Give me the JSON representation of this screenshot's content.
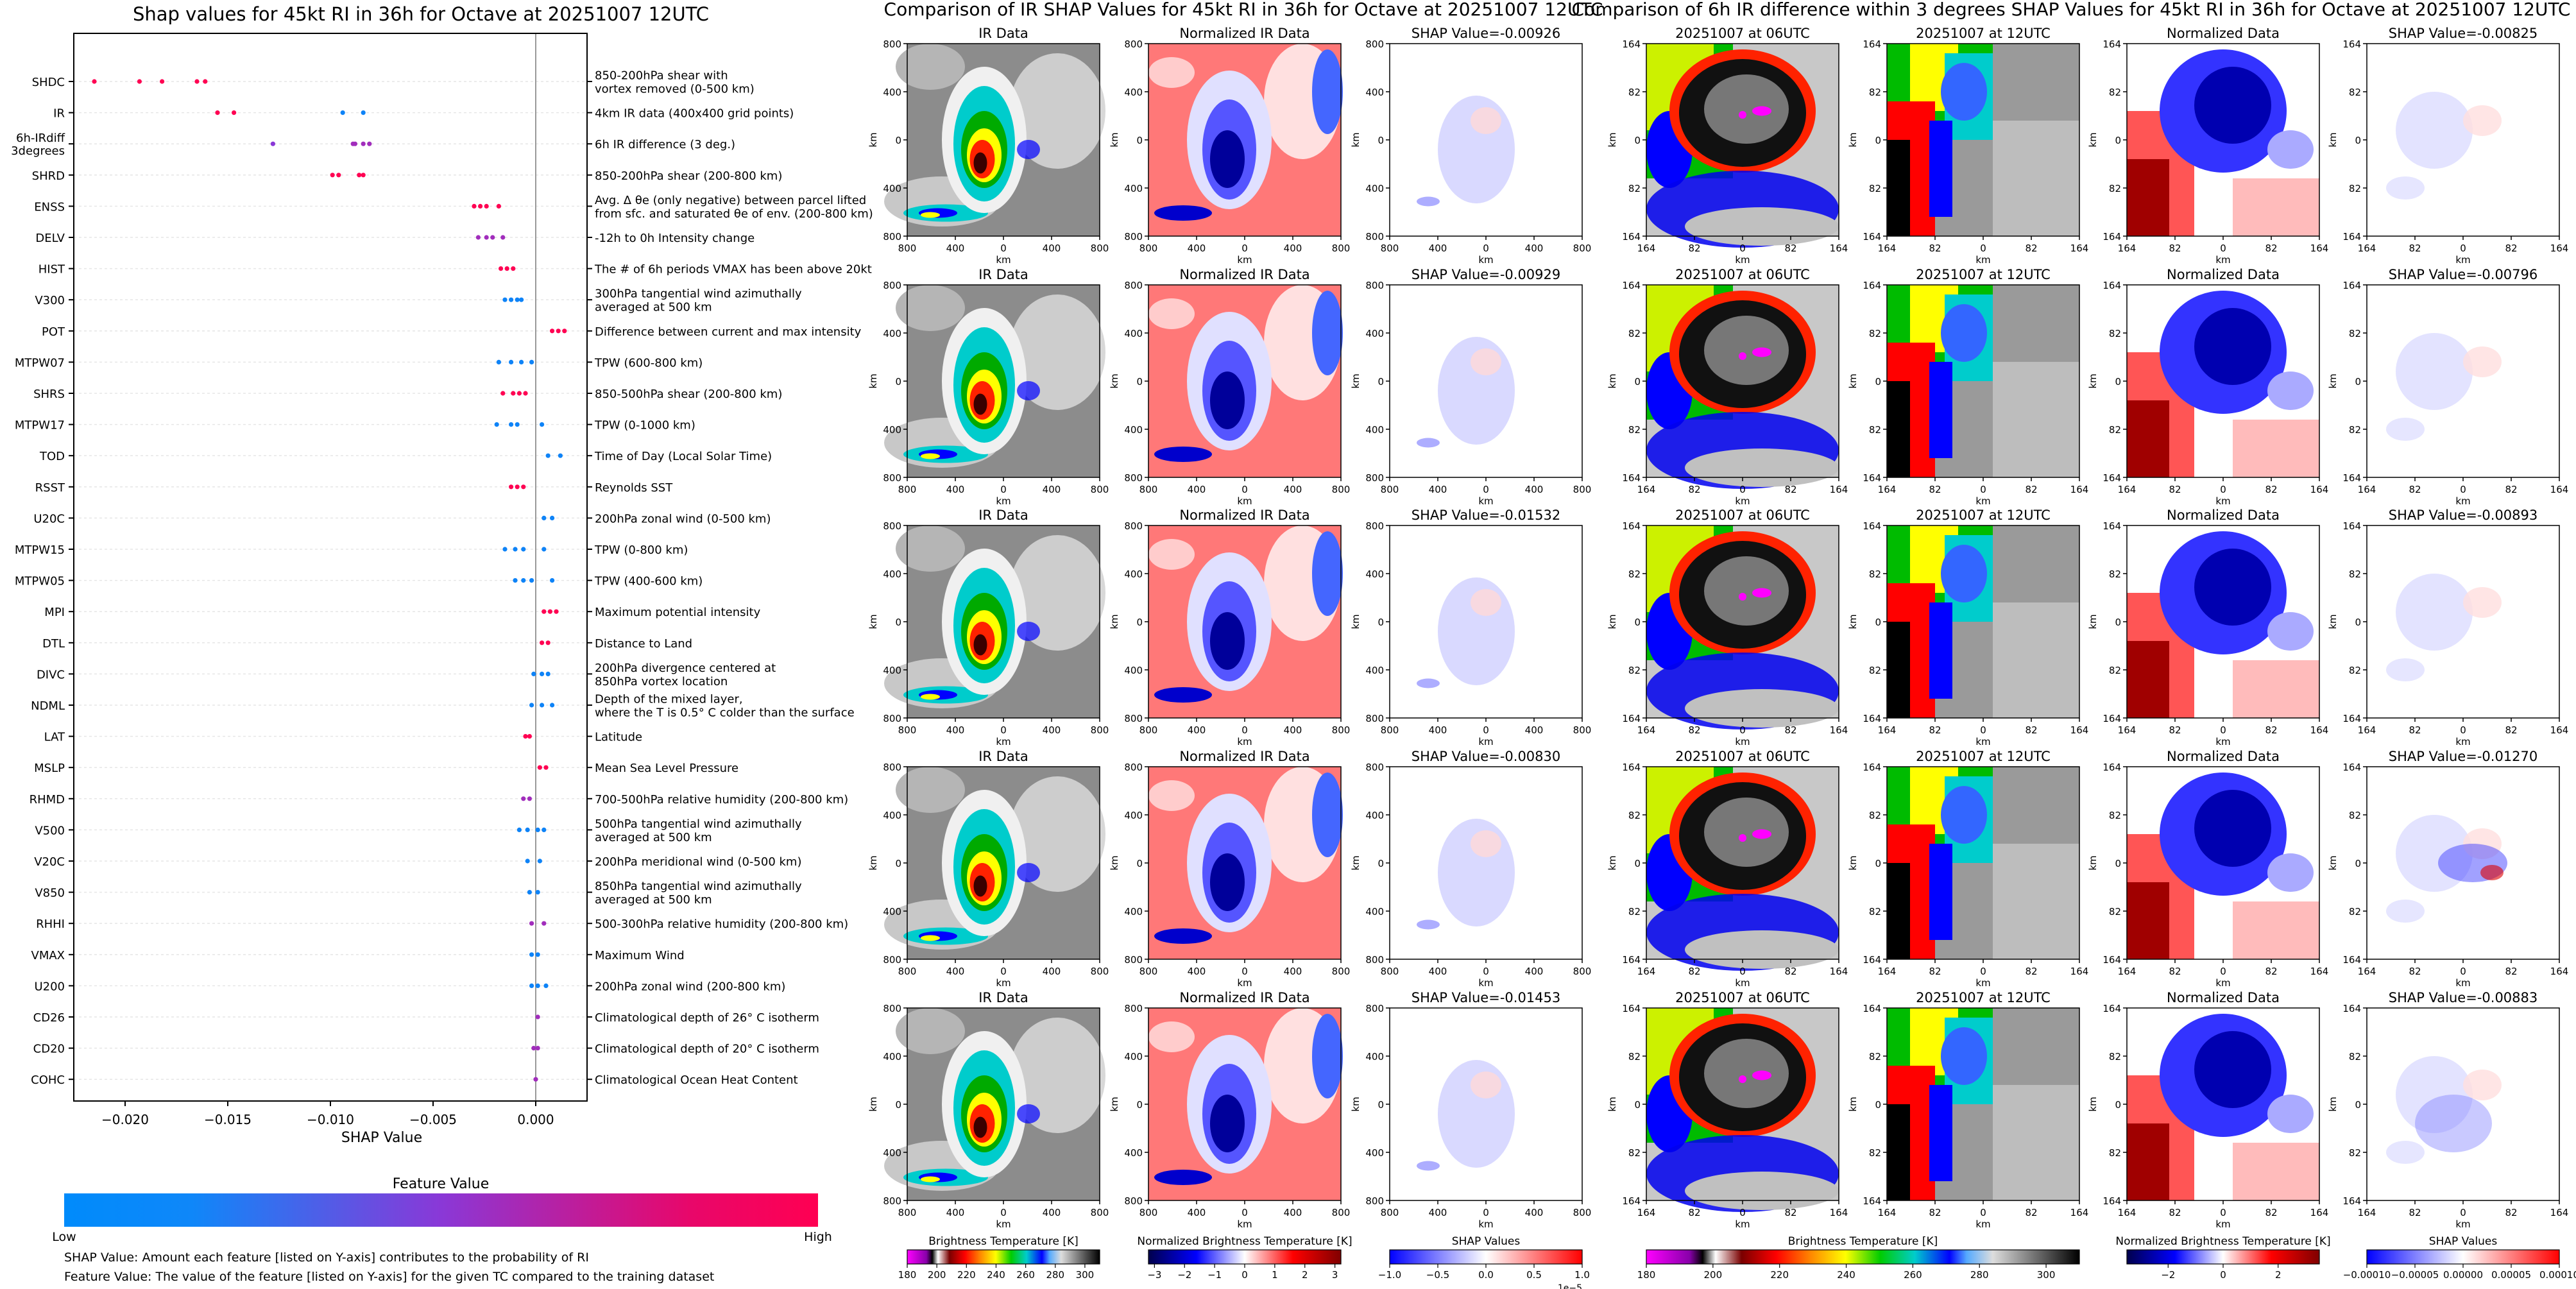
{
  "colors": {
    "low": "#008bfb",
    "mid": "#8a38d7",
    "high": "#ff0052",
    "shap_neg": "#2222ff",
    "shap_pos": "#ff2222"
  },
  "chart_data": [
    {
      "type": "scatter",
      "title": "Shap values for 45kt RI in 36h for Octave at 20251007 12UTC",
      "xlabel": "SHAP Value",
      "ylabel": "",
      "xlim": [
        -0.0225,
        0.0025
      ],
      "x_ticks": [
        "−0.020",
        "−0.015",
        "−0.010",
        "−0.005",
        "0.000"
      ],
      "x_tick_values": [
        -0.02,
        -0.015,
        -0.01,
        -0.005,
        0.0
      ],
      "features": [
        {
          "name": "SHDC",
          "desc": "850-200hPa shear with\nvortex removed (0-500 km)",
          "points": [
            [
              -0.0215,
              1.0
            ],
            [
              -0.0193,
              1.0
            ],
            [
              -0.0182,
              1.0
            ],
            [
              -0.0165,
              1.0
            ],
            [
              -0.0161,
              1.0
            ]
          ]
        },
        {
          "name": "IR",
          "desc": "4km IR data (400x400 grid points)",
          "points": [
            [
              -0.0155,
              1.0
            ],
            [
              -0.0147,
              1.0
            ],
            [
              -0.0094,
              0.05
            ],
            [
              -0.0084,
              0.05
            ]
          ]
        },
        {
          "name": "6h-IRdiff\n3degrees",
          "desc": "6h IR difference (3 deg.)",
          "points": [
            [
              -0.0128,
              0.5
            ],
            [
              -0.0089,
              0.6
            ],
            [
              -0.0088,
              0.6
            ],
            [
              -0.0084,
              0.6
            ],
            [
              -0.0081,
              0.6
            ]
          ]
        },
        {
          "name": "SHRD",
          "desc": "850-200hPa shear (200-800 km)",
          "points": [
            [
              -0.0099,
              1.0
            ],
            [
              -0.0096,
              1.0
            ],
            [
              -0.0086,
              1.0
            ],
            [
              -0.0084,
              1.0
            ]
          ]
        },
        {
          "name": "ENSS",
          "desc": "Avg. Δ θe (only negative) between parcel lifted\nfrom sfc. and saturated θe of env. (200-800 km)",
          "points": [
            [
              -0.003,
              1.0
            ],
            [
              -0.0027,
              1.0
            ],
            [
              -0.0024,
              1.0
            ],
            [
              -0.0018,
              1.0
            ]
          ]
        },
        {
          "name": "DELV",
          "desc": "-12h to 0h Intensity change",
          "points": [
            [
              -0.0028,
              0.6
            ],
            [
              -0.0024,
              0.6
            ],
            [
              -0.0021,
              0.6
            ],
            [
              -0.0016,
              0.6
            ]
          ]
        },
        {
          "name": "HIST",
          "desc": "The # of 6h periods VMAX has been above 20kt",
          "points": [
            [
              -0.0017,
              1.0
            ],
            [
              -0.0014,
              1.0
            ],
            [
              -0.0011,
              1.0
            ]
          ]
        },
        {
          "name": "V300",
          "desc": "300hPa tangential wind azimuthally\naveraged at 500 km",
          "points": [
            [
              -0.0015,
              0.05
            ],
            [
              -0.0012,
              0.05
            ],
            [
              -0.0009,
              0.05
            ],
            [
              -0.0007,
              0.05
            ]
          ]
        },
        {
          "name": "POT",
          "desc": "Difference between current and max intensity",
          "points": [
            [
              0.0008,
              1.0
            ],
            [
              0.0011,
              1.0
            ],
            [
              0.0014,
              1.0
            ]
          ]
        },
        {
          "name": "MTPW07",
          "desc": "TPW (600-800 km)",
          "points": [
            [
              -0.0018,
              0.05
            ],
            [
              -0.0012,
              0.05
            ],
            [
              -0.0007,
              0.05
            ],
            [
              -0.0002,
              0.05
            ]
          ]
        },
        {
          "name": "SHRS",
          "desc": "850-500hPa shear (200-800 km)",
          "points": [
            [
              -0.0016,
              1.0
            ],
            [
              -0.0011,
              1.0
            ],
            [
              -0.0008,
              1.0
            ],
            [
              -0.0005,
              1.0
            ]
          ]
        },
        {
          "name": "MTPW17",
          "desc": "TPW (0-1000 km)",
          "points": [
            [
              -0.0019,
              0.05
            ],
            [
              -0.0012,
              0.05
            ],
            [
              -0.0009,
              0.05
            ],
            [
              0.0003,
              0.05
            ]
          ]
        },
        {
          "name": "TOD",
          "desc": "Time of Day (Local Solar Time)",
          "points": [
            [
              0.0006,
              0.05
            ],
            [
              0.0012,
              0.05
            ]
          ]
        },
        {
          "name": "RSST",
          "desc": "Reynolds SST",
          "points": [
            [
              -0.0012,
              1.0
            ],
            [
              -0.0009,
              1.0
            ],
            [
              -0.0006,
              1.0
            ]
          ]
        },
        {
          "name": "U20C",
          "desc": "200hPa zonal wind (0-500 km)",
          "points": [
            [
              0.0004,
              0.05
            ],
            [
              0.0008,
              0.05
            ]
          ]
        },
        {
          "name": "MTPW15",
          "desc": "TPW (0-800 km)",
          "points": [
            [
              -0.0015,
              0.05
            ],
            [
              -0.001,
              0.05
            ],
            [
              -0.0006,
              0.05
            ],
            [
              0.0004,
              0.05
            ]
          ]
        },
        {
          "name": "MTPW05",
          "desc": "TPW (400-600 km)",
          "points": [
            [
              -0.001,
              0.05
            ],
            [
              -0.0006,
              0.05
            ],
            [
              -0.0002,
              0.05
            ],
            [
              0.0008,
              0.05
            ]
          ]
        },
        {
          "name": "MPI",
          "desc": "Maximum potential intensity",
          "points": [
            [
              0.0004,
              1.0
            ],
            [
              0.0007,
              1.0
            ],
            [
              0.001,
              1.0
            ]
          ]
        },
        {
          "name": "DTL",
          "desc": "Distance to Land",
          "points": [
            [
              0.0003,
              1.0
            ],
            [
              0.0006,
              1.0
            ]
          ]
        },
        {
          "name": "DIVC",
          "desc": "200hPa divergence centered at\n850hPa vortex location",
          "points": [
            [
              -0.0001,
              0.05
            ],
            [
              0.0003,
              0.05
            ],
            [
              0.0006,
              0.05
            ]
          ]
        },
        {
          "name": "NDML",
          "desc": "Depth of the mixed layer,\nwhere the T is 0.5° C colder than the surface",
          "points": [
            [
              -0.0002,
              0.05
            ],
            [
              0.0003,
              0.05
            ],
            [
              0.0008,
              0.05
            ]
          ]
        },
        {
          "name": "LAT",
          "desc": "Latitude",
          "points": [
            [
              -0.0005,
              1.0
            ],
            [
              -0.0003,
              1.0
            ]
          ]
        },
        {
          "name": "MSLP",
          "desc": "Mean Sea Level Pressure",
          "points": [
            [
              0.0002,
              1.0
            ],
            [
              0.0005,
              1.0
            ]
          ]
        },
        {
          "name": "RHMD",
          "desc": "700-500hPa relative humidity (200-800 km)",
          "points": [
            [
              -0.0006,
              0.6
            ],
            [
              -0.0003,
              0.6
            ]
          ]
        },
        {
          "name": "V500",
          "desc": "500hPa tangential wind azimuthally\naveraged at 500 km",
          "points": [
            [
              -0.0008,
              0.05
            ],
            [
              -0.0004,
              0.05
            ],
            [
              0.0001,
              0.05
            ],
            [
              0.0004,
              0.05
            ]
          ]
        },
        {
          "name": "V20C",
          "desc": "200hPa meridional wind (0-500 km)",
          "points": [
            [
              -0.0004,
              0.05
            ],
            [
              0.0002,
              0.05
            ]
          ]
        },
        {
          "name": "V850",
          "desc": "850hPa tangential wind azimuthally\naveraged at 500 km",
          "points": [
            [
              -0.0003,
              0.05
            ],
            [
              0.0001,
              0.05
            ]
          ]
        },
        {
          "name": "RHHI",
          "desc": "500-300hPa relative humidity (200-800 km)",
          "points": [
            [
              -0.0002,
              0.6
            ],
            [
              0.0004,
              0.6
            ]
          ]
        },
        {
          "name": "VMAX",
          "desc": "Maximum Wind",
          "points": [
            [
              -0.0002,
              0.05
            ],
            [
              0.0001,
              0.05
            ]
          ]
        },
        {
          "name": "U200",
          "desc": "200hPa zonal wind (200-800 km)",
          "points": [
            [
              -0.0002,
              0.05
            ],
            [
              0.0001,
              0.05
            ],
            [
              0.0005,
              0.05
            ]
          ]
        },
        {
          "name": "CD26",
          "desc": "Climatological depth of 26° C isotherm",
          "points": [
            [
              0.0001,
              0.6
            ]
          ]
        },
        {
          "name": "CD20",
          "desc": "Climatological depth of 20° C isotherm",
          "points": [
            [
              -0.0001,
              0.6
            ],
            [
              0.0001,
              0.6
            ]
          ]
        },
        {
          "name": "COHC",
          "desc": "Climatological Ocean Heat Content",
          "points": [
            [
              0.0,
              0.6
            ]
          ]
        }
      ],
      "colorbar": {
        "title": "Feature Value",
        "low": "Low",
        "high": "High"
      },
      "notes": [
        "SHAP Value: Amount each feature [listed on Y-axis] contributes to the probability of RI",
        "Feature Value: The value of the feature [listed on Y-axis] for the given TC compared to the training dataset"
      ]
    },
    {
      "type": "heatmap",
      "title": "Comparison of IR SHAP Values for 45kt RI in 36h for Octave at 20251007 12UTC",
      "panel_titles": [
        "IR Data",
        "Normalized IR Data"
      ],
      "shap_titles": [
        "SHAP Value=-0.00926",
        "SHAP Value=-0.00929",
        "SHAP Value=-0.01532",
        "SHAP Value=-0.00830",
        "SHAP Value=-0.01453"
      ],
      "xlabel": "km",
      "ylabel": "km",
      "x_ticks": [
        "800",
        "400",
        "0",
        "400",
        "800"
      ],
      "y_ticks": [
        "800",
        "400",
        "0",
        "400",
        "800"
      ],
      "colorbars": [
        {
          "label": "Brightness Temperature [K]",
          "ticks": [
            "180",
            "200",
            "220",
            "240",
            "260",
            "280",
            "300"
          ],
          "range": [
            180,
            310
          ]
        },
        {
          "label": "Normalized Brightness Temperature [K]",
          "ticks": [
            "−3",
            "−2",
            "−1",
            "0",
            "1",
            "2",
            "3"
          ],
          "range": [
            -3.2,
            3.2
          ]
        },
        {
          "label": "SHAP Values",
          "ticks": [
            "−1.0",
            "−0.5",
            "0.0",
            "0.5",
            "1.0"
          ],
          "range": [
            -1.0,
            1.0
          ],
          "offset": "1e−5"
        }
      ]
    },
    {
      "type": "heatmap",
      "title": "Comparison of 6h IR difference within 3 degrees SHAP Values for 45kt RI in 36h for Octave at 20251007 12UTC",
      "panel_titles": [
        "20251007 at 06UTC",
        "20251007 at 12UTC",
        "Normalized Data"
      ],
      "shap_titles": [
        "SHAP Value=-0.00825",
        "SHAP Value=-0.00796",
        "SHAP Value=-0.00893",
        "SHAP Value=-0.01270",
        "SHAP Value=-0.00883"
      ],
      "xlabel": "km",
      "ylabel": "km",
      "x_ticks": [
        "164",
        "82",
        "0",
        "82",
        "164"
      ],
      "y_ticks": [
        "164",
        "82",
        "0",
        "82",
        "164"
      ],
      "colorbars": [
        {
          "label": "Brightness Temperature [K]",
          "ticks": [
            "180",
            "200",
            "220",
            "240",
            "260",
            "280",
            "300"
          ],
          "range": [
            180,
            310
          ]
        },
        {
          "label": "Normalized Brightness Temperature [K]",
          "ticks": [
            "−2",
            "0",
            "2"
          ],
          "range": [
            -3.5,
            3.5
          ]
        },
        {
          "label": "SHAP Values",
          "ticks": [
            "−0.00010",
            "−0.00005",
            "0.00000",
            "0.00005",
            "0.00010"
          ],
          "range": [
            -0.0001,
            0.0001
          ]
        }
      ]
    }
  ]
}
